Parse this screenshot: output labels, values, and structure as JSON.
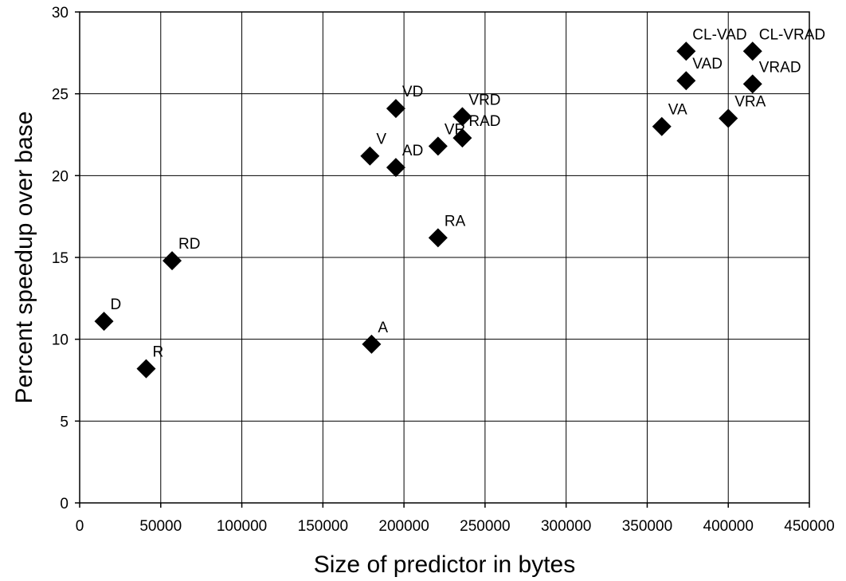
{
  "chart_data": {
    "type": "scatter",
    "title": "",
    "xlabel": "Size of predictor in bytes",
    "ylabel": "Percent speedup over base",
    "xlim": [
      0,
      450000
    ],
    "ylim": [
      0,
      30
    ],
    "xticks": [
      0,
      50000,
      100000,
      150000,
      200000,
      250000,
      300000,
      350000,
      400000,
      450000
    ],
    "yticks": [
      0,
      5,
      10,
      15,
      20,
      25,
      30
    ],
    "grid": true,
    "legend": "none",
    "marker": "diamond",
    "marker_color": "#000000",
    "points": [
      {
        "label": "D",
        "x": 15000,
        "y": 11.1
      },
      {
        "label": "R",
        "x": 41000,
        "y": 8.2
      },
      {
        "label": "RD",
        "x": 57000,
        "y": 14.8
      },
      {
        "label": "A",
        "x": 180000,
        "y": 9.7
      },
      {
        "label": "V",
        "x": 179000,
        "y": 21.2
      },
      {
        "label": "AD",
        "x": 195000,
        "y": 20.5
      },
      {
        "label": "VD",
        "x": 195000,
        "y": 24.1
      },
      {
        "label": "RA",
        "x": 221000,
        "y": 16.2
      },
      {
        "label": "VR",
        "x": 221000,
        "y": 21.8
      },
      {
        "label": "RAD",
        "x": 236000,
        "y": 22.3
      },
      {
        "label": "VRD",
        "x": 236000,
        "y": 23.6
      },
      {
        "label": "VA",
        "x": 359000,
        "y": 23.0
      },
      {
        "label": "VAD",
        "x": 374000,
        "y": 25.8
      },
      {
        "label": "CL-VAD",
        "x": 374000,
        "y": 27.6
      },
      {
        "label": "VRA",
        "x": 400000,
        "y": 23.5
      },
      {
        "label": "VRAD",
        "x": 415000,
        "y": 25.6
      },
      {
        "label": "CL-VRAD",
        "x": 415000,
        "y": 27.6
      }
    ]
  }
}
